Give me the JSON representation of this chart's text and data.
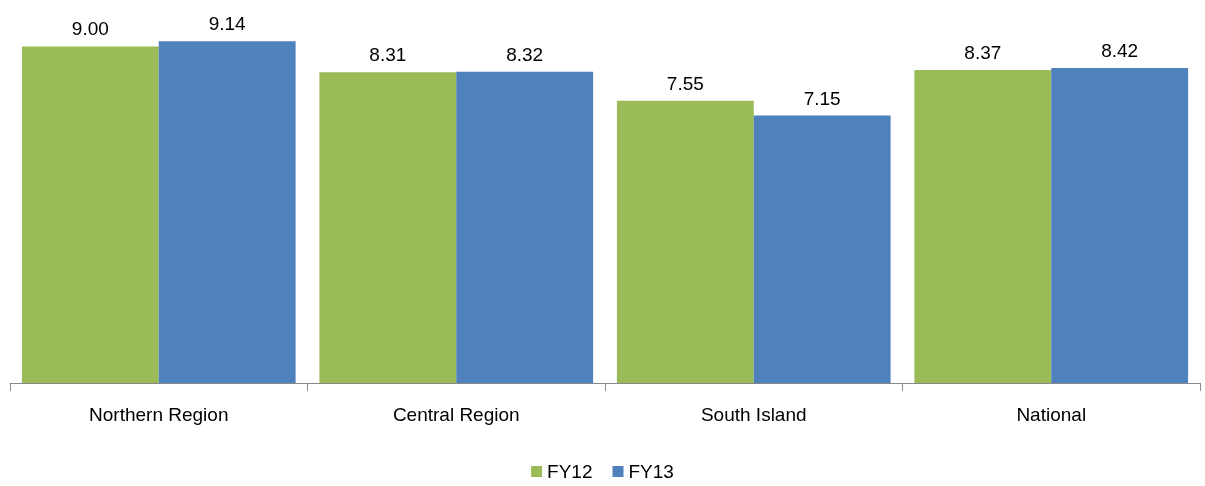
{
  "chart_data": {
    "type": "bar",
    "categories": [
      "Northern Region",
      "Central Region",
      "South Island",
      "National"
    ],
    "series": [
      {
        "name": "FY12",
        "color": "#9bbb59",
        "values": [
          9.0,
          8.31,
          7.55,
          8.37
        ],
        "value_labels": [
          "9.00",
          "8.31",
          "7.55",
          "8.37"
        ]
      },
      {
        "name": "FY13",
        "color": "#4f81bd",
        "values": [
          9.14,
          8.32,
          7.15,
          8.42
        ],
        "value_labels": [
          "9.14",
          "8.32",
          "7.15",
          "8.42"
        ]
      }
    ],
    "tick_labels": "x",
    "legend": "bottom"
  }
}
